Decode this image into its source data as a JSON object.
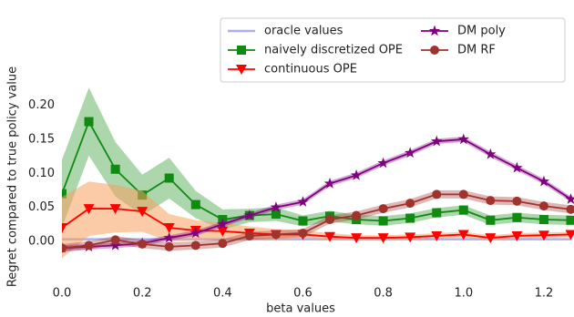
{
  "chart_data": {
    "type": "line",
    "xlabel": "beta values",
    "ylabel": "Regret compared to true policy value",
    "x": [
      0,
      0.067,
      0.133,
      0.2,
      0.267,
      0.333,
      0.4,
      0.467,
      0.533,
      0.6,
      0.667,
      0.733,
      0.8,
      0.867,
      0.933,
      1.0,
      1.067,
      1.133,
      1.2,
      1.267
    ],
    "xlim": [
      0,
      1.275
    ],
    "ylim": [
      -0.047,
      0.237
    ],
    "xticks": [
      {
        "value": 0,
        "label": "0.0"
      },
      {
        "value": 0.2,
        "label": "0.2"
      },
      {
        "value": 0.4,
        "label": "0.4"
      },
      {
        "value": 0.6,
        "label": "0.6"
      },
      {
        "value": 0.8,
        "label": "0.8"
      },
      {
        "value": 1.0,
        "label": "1.0"
      },
      {
        "value": 1.2,
        "label": "1.2"
      }
    ],
    "yticks": [
      {
        "value": 0,
        "label": "0.00"
      },
      {
        "value": 0.05,
        "label": "0.05"
      },
      {
        "value": 0.1,
        "label": "0.10"
      },
      {
        "value": 0.15,
        "label": "0.15"
      },
      {
        "value": 0.2,
        "label": "0.20"
      }
    ],
    "series": [
      {
        "name": "oracle values",
        "color": "#9a9af5",
        "values": [
          0.003,
          0.003,
          0.003,
          0.003,
          0.003,
          0.003,
          0.003,
          0.003,
          0.003,
          0.003,
          0.003,
          0.003,
          0.003,
          0.003,
          0.003,
          0.003,
          0.003,
          0.003,
          0.003,
          0.003
        ]
      },
      {
        "name": "naively discretized OPE",
        "color": "#118a11",
        "marker": "square",
        "values": [
          0.07,
          0.176,
          0.106,
          0.068,
          0.093,
          0.054,
          0.032,
          0.038,
          0.04,
          0.03,
          0.037,
          0.032,
          0.03,
          0.034,
          0.042,
          0.046,
          0.031,
          0.035,
          0.032,
          0.031
        ],
        "errors": [
          0.05,
          0.05,
          0.04,
          0.03,
          0.03,
          0.02,
          0.015,
          0.01,
          0.01,
          0.008,
          0.008,
          0.007,
          0.007,
          0.007,
          0.007,
          0.007,
          0.007,
          0.007,
          0.007,
          0.007
        ]
      },
      {
        "name": "continuous OPE",
        "color": "#ff0000",
        "marker": "triangle_down",
        "values": [
          0.02,
          0.048,
          0.048,
          0.044,
          0.02,
          0.016,
          0.015,
          0.012,
          0.01,
          0.01,
          0.007,
          0.005,
          0.005,
          0.006,
          0.008,
          0.01,
          0.005,
          0.008,
          0.009,
          0.01
        ],
        "errors": [
          0.045,
          0.04,
          0.035,
          0.03,
          0.02,
          0.015,
          0.012,
          0.01,
          0.008,
          0.006,
          0.005,
          0.004,
          0.004,
          0.004,
          0.004,
          0.004,
          0.004,
          0.004,
          0.004,
          0.004
        ]
      },
      {
        "name": "DM poly",
        "color": "#800080",
        "marker": "star",
        "values": [
          -0.01,
          -0.008,
          -0.006,
          -0.003,
          0.005,
          0.012,
          0.025,
          0.038,
          0.05,
          0.058,
          0.085,
          0.097,
          0.115,
          0.13,
          0.147,
          0.15,
          0.128,
          0.108,
          0.088,
          0.062
        ],
        "errors": [
          0.004,
          0.004,
          0.004,
          0.004,
          0.004,
          0.004,
          0.004,
          0.004,
          0.004,
          0.004,
          0.004,
          0.004,
          0.004,
          0.004,
          0.004,
          0.004,
          0.004,
          0.004,
          0.004,
          0.004
        ]
      },
      {
        "name": "DM RF",
        "color": "#a0332e",
        "marker": "circle",
        "values": [
          -0.01,
          -0.006,
          0.002,
          -0.004,
          -0.008,
          -0.006,
          -0.003,
          0.008,
          0.01,
          0.012,
          0.032,
          0.038,
          0.048,
          0.056,
          0.069,
          0.069,
          0.06,
          0.059,
          0.052,
          0.047
        ],
        "errors": [
          0.006,
          0.006,
          0.006,
          0.006,
          0.006,
          0.006,
          0.006,
          0.006,
          0.006,
          0.006,
          0.006,
          0.006,
          0.006,
          0.006,
          0.006,
          0.006,
          0.006,
          0.006,
          0.006,
          0.006
        ]
      }
    ]
  }
}
